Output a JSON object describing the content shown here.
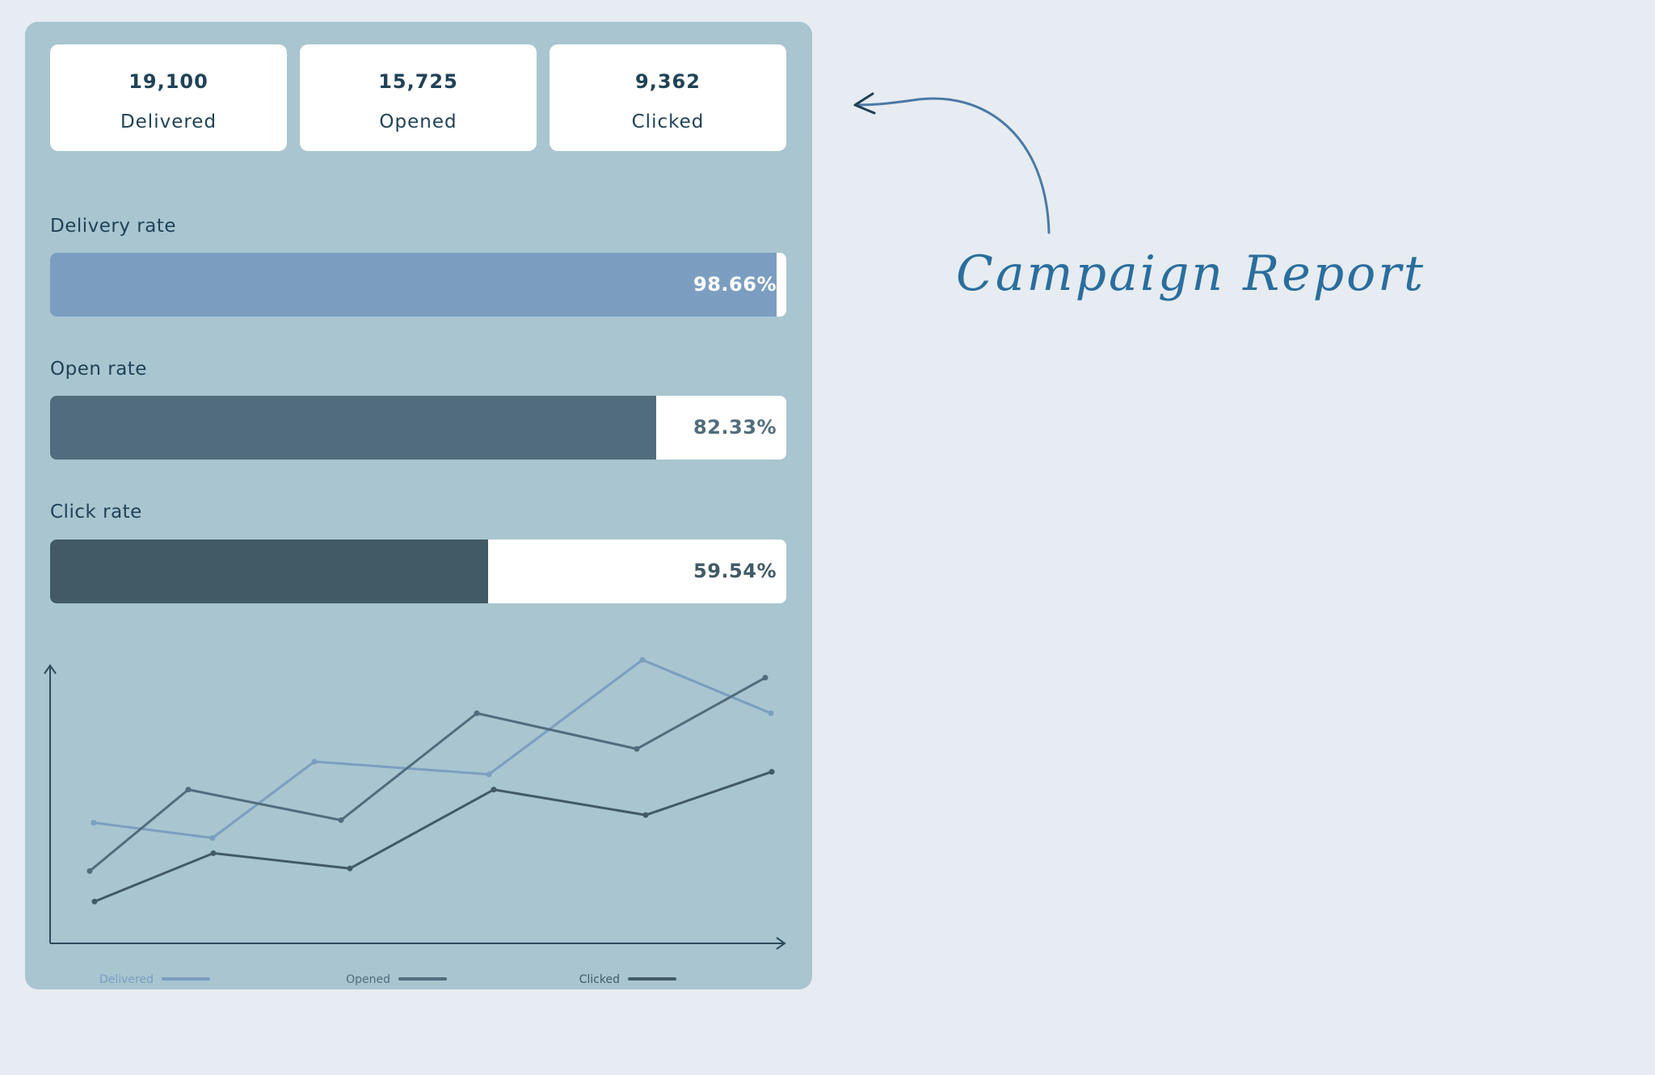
{
  "title": "Campaign Report",
  "stats": [
    {
      "value": "19,100",
      "label": "Delivered"
    },
    {
      "value": "15,725",
      "label": "Opened"
    },
    {
      "value": "9,362",
      "label": "Clicked"
    }
  ],
  "rates": [
    {
      "label": "Delivery rate",
      "value_text": "98.66%",
      "value": 98.66,
      "fill": "#7b9ec0",
      "text_color": "#ffffff"
    },
    {
      "label": "Open rate",
      "value_text": "82.33%",
      "value": 82.33,
      "fill": "#516c7c",
      "text_color": "#516c7c"
    },
    {
      "label": "Click rate",
      "value_text": "59.54%",
      "value": 59.54,
      "fill": "#425a66",
      "text_color": "#425a66"
    }
  ],
  "chart_data": {
    "type": "line",
    "x": [
      1,
      2,
      3,
      4,
      5,
      6
    ],
    "ylim": [
      0,
      100
    ],
    "grid": false,
    "legend": "bottom",
    "series": [
      {
        "name": "Delivered",
        "values": [
          36,
          30,
          60,
          55,
          100,
          79
        ],
        "color": "#7b9ec0"
      },
      {
        "name": "Opened",
        "values": [
          17,
          49,
          37,
          79,
          65,
          93
        ],
        "color": "#516c7c"
      },
      {
        "name": "Clicked",
        "values": [
          5,
          24,
          18,
          49,
          39,
          56
        ],
        "color": "#425a66"
      }
    ]
  }
}
